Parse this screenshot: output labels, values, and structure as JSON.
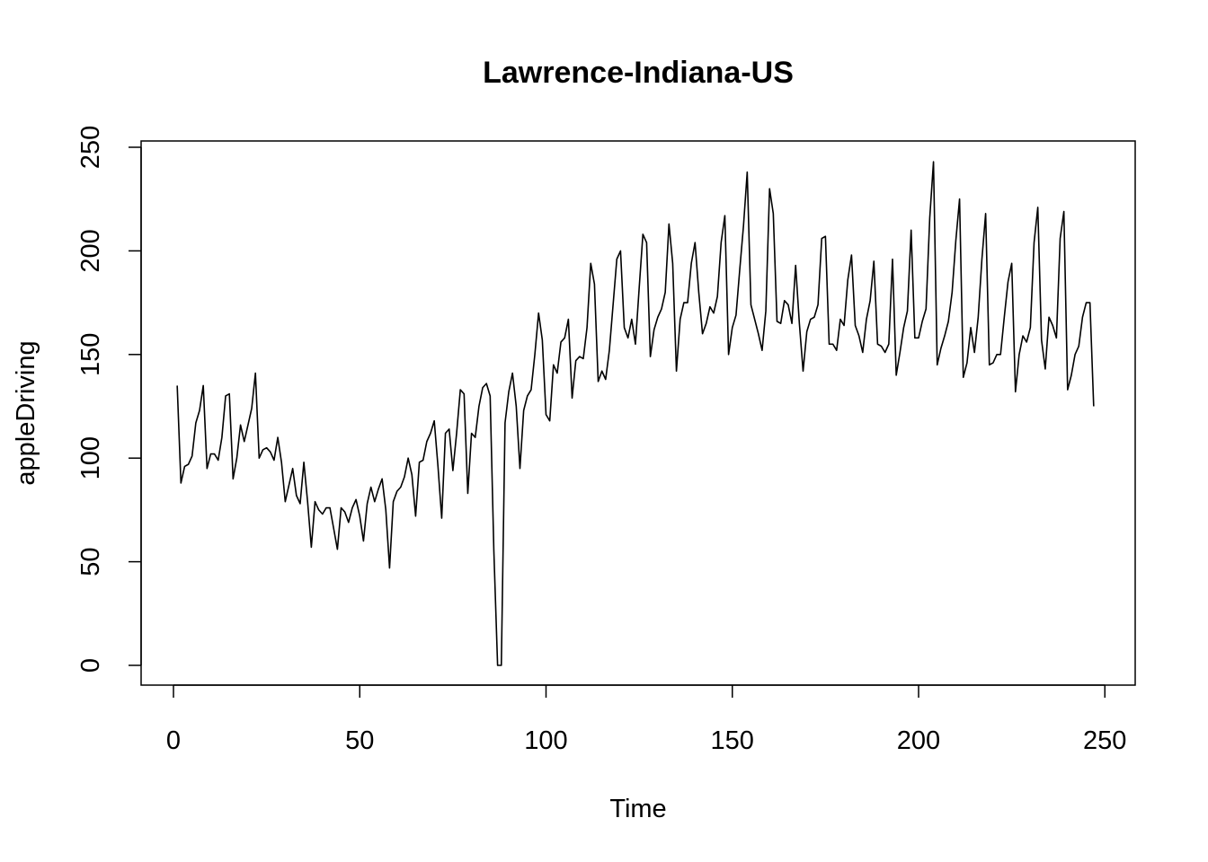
{
  "chart_data": {
    "type": "line",
    "title": "Lawrence-Indiana-US",
    "xlabel": "Time",
    "ylabel": "appleDriving",
    "xlim": [
      1,
      248
    ],
    "ylim": [
      0,
      244
    ],
    "xticks": [
      0,
      50,
      100,
      150,
      200,
      250
    ],
    "yticks": [
      0,
      50,
      100,
      150,
      200,
      250
    ],
    "grid": false,
    "legend": "none",
    "colors": {
      "line": "#000000",
      "background": "#ffffff"
    },
    "series": [
      {
        "values": [
          135,
          88,
          96,
          97,
          101,
          117,
          123,
          135,
          95,
          102,
          102,
          99,
          110,
          130,
          131,
          90,
          100,
          116,
          108,
          116,
          124,
          141,
          100,
          104,
          105,
          103,
          99,
          110,
          98,
          79,
          87,
          95,
          82,
          78,
          98,
          79,
          57,
          79,
          75,
          73,
          76,
          76,
          66,
          56,
          76,
          74,
          69,
          76,
          80,
          72,
          60,
          78,
          86,
          79,
          85,
          90,
          75,
          47,
          79,
          84,
          86,
          91,
          100,
          92,
          72,
          98,
          99,
          108,
          112,
          118,
          96,
          71,
          112,
          114,
          94,
          112,
          133,
          131,
          83,
          112,
          110,
          125,
          134,
          136,
          130,
          55,
          0,
          0,
          117,
          132,
          141,
          125,
          95,
          123,
          130,
          133,
          150,
          170,
          157,
          121,
          118,
          145,
          141,
          156,
          158,
          167,
          129,
          147,
          149,
          148,
          163,
          194,
          184,
          137,
          142,
          138,
          152,
          174,
          196,
          200,
          163,
          158,
          167,
          155,
          182,
          208,
          204,
          149,
          162,
          168,
          172,
          180,
          213,
          194,
          142,
          167,
          175,
          175,
          194,
          204,
          180,
          160,
          165,
          173,
          170,
          178,
          204,
          217,
          150,
          163,
          169,
          191,
          212,
          238,
          174,
          167,
          160,
          152,
          171,
          230,
          218,
          166,
          165,
          176,
          174,
          165,
          193,
          165,
          142,
          161,
          167,
          168,
          174,
          206,
          207,
          155,
          155,
          152,
          167,
          164,
          186,
          198,
          164,
          159,
          151,
          167,
          176,
          195,
          155,
          154,
          151,
          155,
          196,
          140,
          151,
          163,
          171,
          210,
          158,
          158,
          166,
          172,
          216,
          243,
          145,
          153,
          159,
          166,
          180,
          205,
          225,
          139,
          146,
          163,
          151,
          168,
          196,
          218,
          145,
          146,
          150,
          150,
          168,
          185,
          194,
          132,
          150,
          159,
          156,
          163,
          204,
          221,
          157,
          143,
          168,
          164,
          158,
          206,
          219,
          133,
          140,
          150,
          154,
          168,
          175,
          175,
          125
        ]
      }
    ]
  }
}
